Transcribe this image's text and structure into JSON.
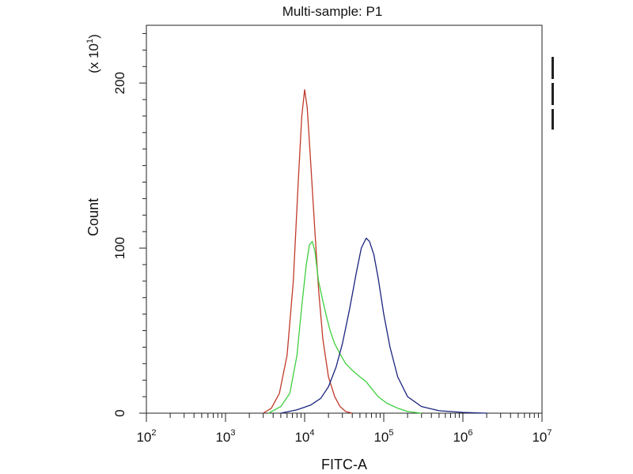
{
  "chart_data": {
    "type": "line",
    "title": "Multi-sample: P1",
    "xlabel": "FITC-A",
    "ylabel": "Count",
    "y_multiplier_label": "(x 10^1)",
    "x_scale": "log",
    "xlim": [
      100,
      10000000
    ],
    "ylim": [
      0,
      235
    ],
    "x_ticks": [
      {
        "value": 100,
        "base": "10",
        "exp": "2"
      },
      {
        "value": 1000,
        "base": "10",
        "exp": "3"
      },
      {
        "value": 10000,
        "base": "10",
        "exp": "4"
      },
      {
        "value": 100000,
        "base": "10",
        "exp": "5"
      },
      {
        "value": 1000000,
        "base": "10",
        "exp": "6"
      },
      {
        "value": 10000000,
        "base": "10",
        "exp": "7"
      }
    ],
    "y_ticks": [
      {
        "value": 0,
        "label": "0"
      },
      {
        "value": 100,
        "label": "100"
      },
      {
        "value": 200,
        "label": "200"
      }
    ],
    "grid": false,
    "legend": "none",
    "series": [
      {
        "color": "#c0392b",
        "points": [
          [
            3000,
            0
          ],
          [
            3800,
            3
          ],
          [
            4800,
            12
          ],
          [
            6000,
            35
          ],
          [
            7200,
            80
          ],
          [
            8300,
            140
          ],
          [
            9200,
            180
          ],
          [
            10000,
            196
          ],
          [
            10800,
            185
          ],
          [
            12000,
            150
          ],
          [
            13500,
            110
          ],
          [
            15000,
            75
          ],
          [
            17000,
            45
          ],
          [
            20000,
            22
          ],
          [
            24000,
            10
          ],
          [
            28000,
            4
          ],
          [
            33000,
            1
          ],
          [
            40000,
            0
          ]
        ]
      },
      {
        "color": "#3ecf3e",
        "points": [
          [
            3500,
            0
          ],
          [
            5000,
            4
          ],
          [
            6500,
            12
          ],
          [
            8000,
            35
          ],
          [
            9200,
            65
          ],
          [
            10500,
            90
          ],
          [
            11500,
            102
          ],
          [
            12500,
            104
          ],
          [
            13500,
            98
          ],
          [
            15000,
            80
          ],
          [
            17000,
            68
          ],
          [
            19000,
            58
          ],
          [
            21000,
            50
          ],
          [
            24000,
            42
          ],
          [
            28000,
            36
          ],
          [
            33000,
            30
          ],
          [
            40000,
            26
          ],
          [
            50000,
            22
          ],
          [
            60000,
            19
          ],
          [
            70000,
            15
          ],
          [
            85000,
            10
          ],
          [
            110000,
            6
          ],
          [
            150000,
            3
          ],
          [
            200000,
            1
          ],
          [
            300000,
            0
          ]
        ]
      },
      {
        "color": "#1a237e",
        "points": [
          [
            5000,
            0
          ],
          [
            8000,
            2
          ],
          [
            12000,
            5
          ],
          [
            16000,
            9
          ],
          [
            20000,
            16
          ],
          [
            25000,
            28
          ],
          [
            30000,
            42
          ],
          [
            37000,
            63
          ],
          [
            45000,
            85
          ],
          [
            52000,
            100
          ],
          [
            60000,
            106
          ],
          [
            66000,
            104
          ],
          [
            75000,
            96
          ],
          [
            85000,
            82
          ],
          [
            100000,
            60
          ],
          [
            120000,
            40
          ],
          [
            150000,
            22
          ],
          [
            200000,
            10
          ],
          [
            300000,
            4
          ],
          [
            500000,
            1.5
          ],
          [
            1000000,
            0.5
          ],
          [
            2000000,
            0
          ]
        ]
      }
    ]
  }
}
